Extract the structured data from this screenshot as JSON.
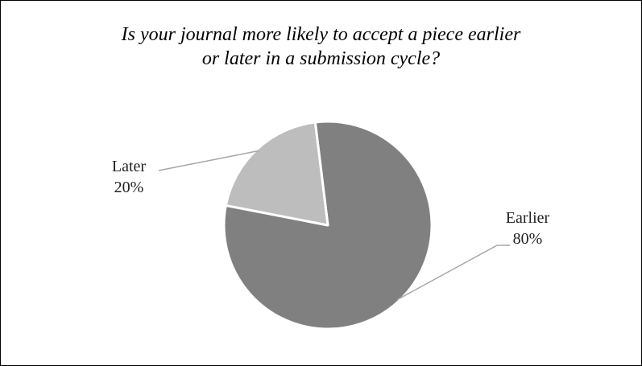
{
  "chart_data": {
    "type": "pie",
    "title_lines": [
      "Is your journal more likely to accept a piece earlier",
      "or later in a submission cycle?"
    ],
    "categories": [
      "Earlier",
      "Later"
    ],
    "values": [
      80,
      20
    ],
    "value_labels": [
      "80%",
      "20%"
    ],
    "colors": [
      "#808080",
      "#bdbdbd"
    ],
    "legend": "none"
  }
}
